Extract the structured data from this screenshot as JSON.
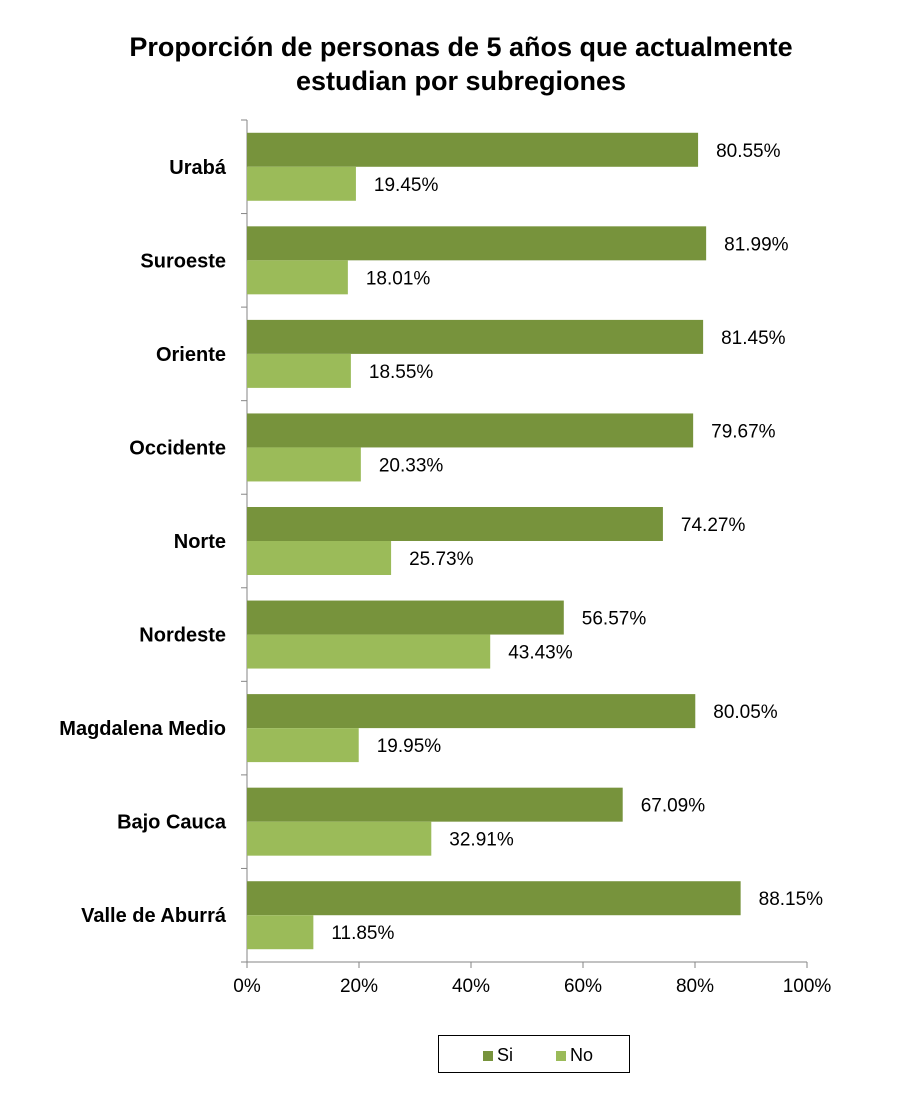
{
  "chart_data": {
    "type": "bar",
    "orientation": "horizontal",
    "title_lines": [
      "Proporción de personas de 5 años que actualmente",
      "estudian por subregiones"
    ],
    "categories": [
      "Urabá",
      "Suroeste",
      "Oriente",
      "Occidente",
      "Norte",
      "Nordeste",
      "Magdalena Medio",
      "Bajo Cauca",
      "Valle de Aburrá"
    ],
    "series": [
      {
        "name": "Si",
        "color": "#77933c",
        "values": [
          80.55,
          81.99,
          81.45,
          79.67,
          74.27,
          56.57,
          80.05,
          67.09,
          88.15
        ],
        "labels": [
          "80.55%",
          "81.99%",
          "81.45%",
          "79.67%",
          "74.27%",
          "56.57%",
          "80.05%",
          "67.09%",
          "88.15%"
        ]
      },
      {
        "name": "No",
        "color": "#9bbb59",
        "values": [
          19.45,
          18.01,
          18.55,
          20.33,
          25.73,
          43.43,
          19.95,
          32.91,
          11.85
        ],
        "labels": [
          "19.45%",
          "18.01%",
          "18.55%",
          "20.33%",
          "25.73%",
          "43.43%",
          "19.95%",
          "32.91%",
          "11.85%"
        ]
      }
    ],
    "xlim": [
      0,
      100
    ],
    "xticks": [
      0,
      20,
      40,
      60,
      80,
      100
    ],
    "xtick_labels": [
      "0%",
      "20%",
      "40%",
      "60%",
      "80%",
      "100%"
    ],
    "grid": false,
    "legend_position": "bottom"
  }
}
